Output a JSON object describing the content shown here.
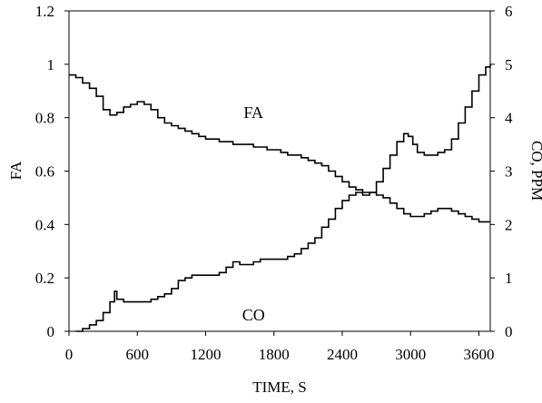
{
  "chart_data": {
    "type": "line",
    "xlabel": "TIME, S",
    "ylabel_left": "FA",
    "ylabel_right": "CO, PPM",
    "xlim": [
      0,
      3700
    ],
    "ylim_left": [
      0,
      1.2
    ],
    "ylim_right": [
      0,
      6
    ],
    "x_ticks": [
      0,
      600,
      1200,
      1800,
      2400,
      3000,
      3600
    ],
    "y_left_ticks": [
      0,
      0.2,
      0.4,
      0.6,
      0.8,
      1,
      1.2
    ],
    "y_right_ticks": [
      0,
      1,
      2,
      3,
      4,
      5,
      6
    ],
    "grid": false,
    "line_color": "#000000",
    "annotations": [
      {
        "text": "FA",
        "series": "FA",
        "x": 1620,
        "y": 0.82
      },
      {
        "text": "CO",
        "series": "CO",
        "x": 1620,
        "y": 0.305
      }
    ],
    "series": [
      {
        "name": "FA",
        "axis": "left",
        "x": [
          0,
          60,
          120,
          180,
          240,
          300,
          360,
          420,
          480,
          540,
          600,
          660,
          720,
          780,
          840,
          900,
          960,
          1020,
          1080,
          1140,
          1200,
          1260,
          1320,
          1380,
          1440,
          1500,
          1560,
          1620,
          1680,
          1740,
          1800,
          1860,
          1920,
          1980,
          2040,
          2100,
          2160,
          2220,
          2280,
          2340,
          2400,
          2460,
          2520,
          2580,
          2640,
          2700,
          2760,
          2820,
          2880,
          2940,
          3000,
          3060,
          3120,
          3180,
          3240,
          3300,
          3360,
          3420,
          3480,
          3540,
          3600,
          3660,
          3700
        ],
        "y": [
          0.96,
          0.95,
          0.93,
          0.91,
          0.88,
          0.83,
          0.81,
          0.82,
          0.84,
          0.85,
          0.86,
          0.85,
          0.83,
          0.8,
          0.78,
          0.77,
          0.76,
          0.75,
          0.74,
          0.73,
          0.72,
          0.72,
          0.71,
          0.71,
          0.7,
          0.7,
          0.7,
          0.69,
          0.69,
          0.68,
          0.68,
          0.67,
          0.66,
          0.66,
          0.65,
          0.64,
          0.63,
          0.62,
          0.6,
          0.58,
          0.56,
          0.54,
          0.53,
          0.52,
          0.52,
          0.51,
          0.5,
          0.48,
          0.46,
          0.44,
          0.43,
          0.43,
          0.44,
          0.45,
          0.46,
          0.46,
          0.45,
          0.44,
          0.43,
          0.42,
          0.41,
          0.41,
          0.41
        ]
      },
      {
        "name": "CO",
        "axis": "right",
        "x": [
          60,
          120,
          180,
          240,
          300,
          360,
          400,
          420,
          480,
          540,
          600,
          660,
          720,
          780,
          840,
          900,
          960,
          1020,
          1080,
          1140,
          1200,
          1260,
          1320,
          1380,
          1440,
          1500,
          1560,
          1620,
          1680,
          1740,
          1800,
          1860,
          1920,
          1980,
          2040,
          2100,
          2160,
          2220,
          2280,
          2340,
          2400,
          2460,
          2520,
          2580,
          2640,
          2700,
          2760,
          2820,
          2880,
          2940,
          2980,
          3020,
          3060,
          3120,
          3180,
          3240,
          3300,
          3360,
          3420,
          3480,
          3540,
          3600,
          3660,
          3700
        ],
        "y": [
          0.0,
          0.05,
          0.12,
          0.2,
          0.35,
          0.55,
          0.75,
          0.6,
          0.55,
          0.55,
          0.55,
          0.55,
          0.6,
          0.65,
          0.7,
          0.8,
          0.95,
          1.0,
          1.05,
          1.05,
          1.05,
          1.05,
          1.1,
          1.2,
          1.3,
          1.25,
          1.25,
          1.3,
          1.35,
          1.35,
          1.35,
          1.35,
          1.4,
          1.45,
          1.55,
          1.65,
          1.75,
          1.95,
          2.1,
          2.3,
          2.45,
          2.55,
          2.6,
          2.55,
          2.6,
          2.8,
          3.05,
          3.3,
          3.55,
          3.7,
          3.65,
          3.5,
          3.35,
          3.3,
          3.3,
          3.35,
          3.4,
          3.6,
          3.9,
          4.2,
          4.5,
          4.8,
          4.95,
          5.0
        ]
      }
    ]
  }
}
